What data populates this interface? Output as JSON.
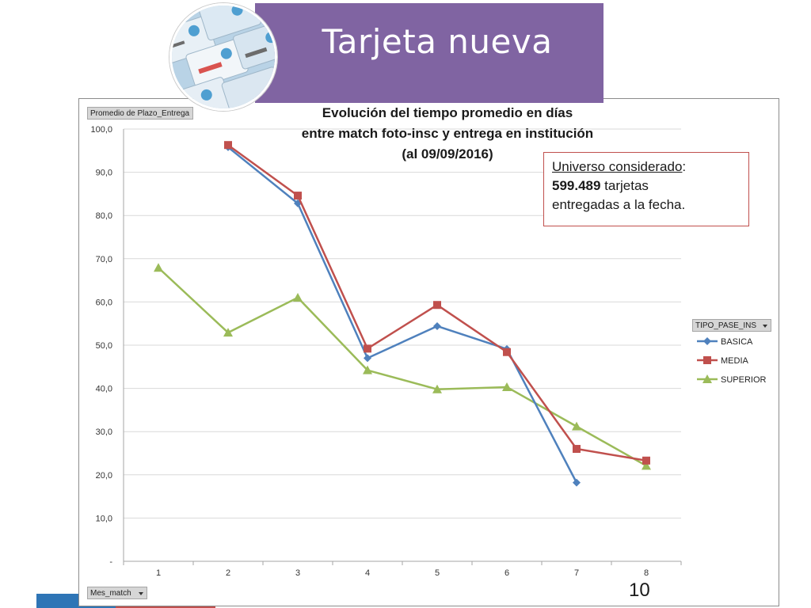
{
  "slide": {
    "title": "Tarjeta nueva",
    "page_number": "10"
  },
  "pivot": {
    "value_field": "Promedio de Plazo_Entrega",
    "legend_field": "TIPO_PASE_INS",
    "axis_field": "Mes_match"
  },
  "callout": {
    "line1": "Universo considerado",
    "line1_suffix": ":",
    "count": "599.489",
    "line2_suffix": " tarjetas",
    "line3": "entregadas a la fecha."
  },
  "colors": {
    "header": "#8064a2",
    "basica": "#4f81bd",
    "media": "#c0504d",
    "superior": "#9bbb59",
    "callout_border": "#c0504d"
  },
  "chart_data": {
    "type": "line",
    "title": [
      "Evolución del tiempo promedio en días",
      "entre match foto-insc y entrega en institución",
      "(al 09/09/2016)"
    ],
    "categories": [
      "1",
      "2",
      "3",
      "4",
      "5",
      "6",
      "7",
      "8"
    ],
    "ylim": [
      0,
      100
    ],
    "yticks": [
      "-",
      "10,0",
      "20,0",
      "30,0",
      "40,0",
      "50,0",
      "60,0",
      "70,0",
      "80,0",
      "90,0",
      "100,0"
    ],
    "grid": true,
    "legend_position": "right",
    "series": [
      {
        "name": "BASICA",
        "marker": "diamond",
        "values": [
          null,
          95.8,
          82.8,
          47.0,
          54.4,
          49.1,
          18.2,
          null
        ]
      },
      {
        "name": "MEDIA",
        "marker": "square",
        "values": [
          null,
          96.3,
          84.6,
          49.2,
          59.3,
          48.4,
          26.0,
          23.3
        ]
      },
      {
        "name": "SUPERIOR",
        "marker": "triangle",
        "values": [
          67.9,
          52.9,
          61.0,
          44.2,
          39.8,
          40.3,
          31.2,
          22.1
        ]
      }
    ]
  }
}
